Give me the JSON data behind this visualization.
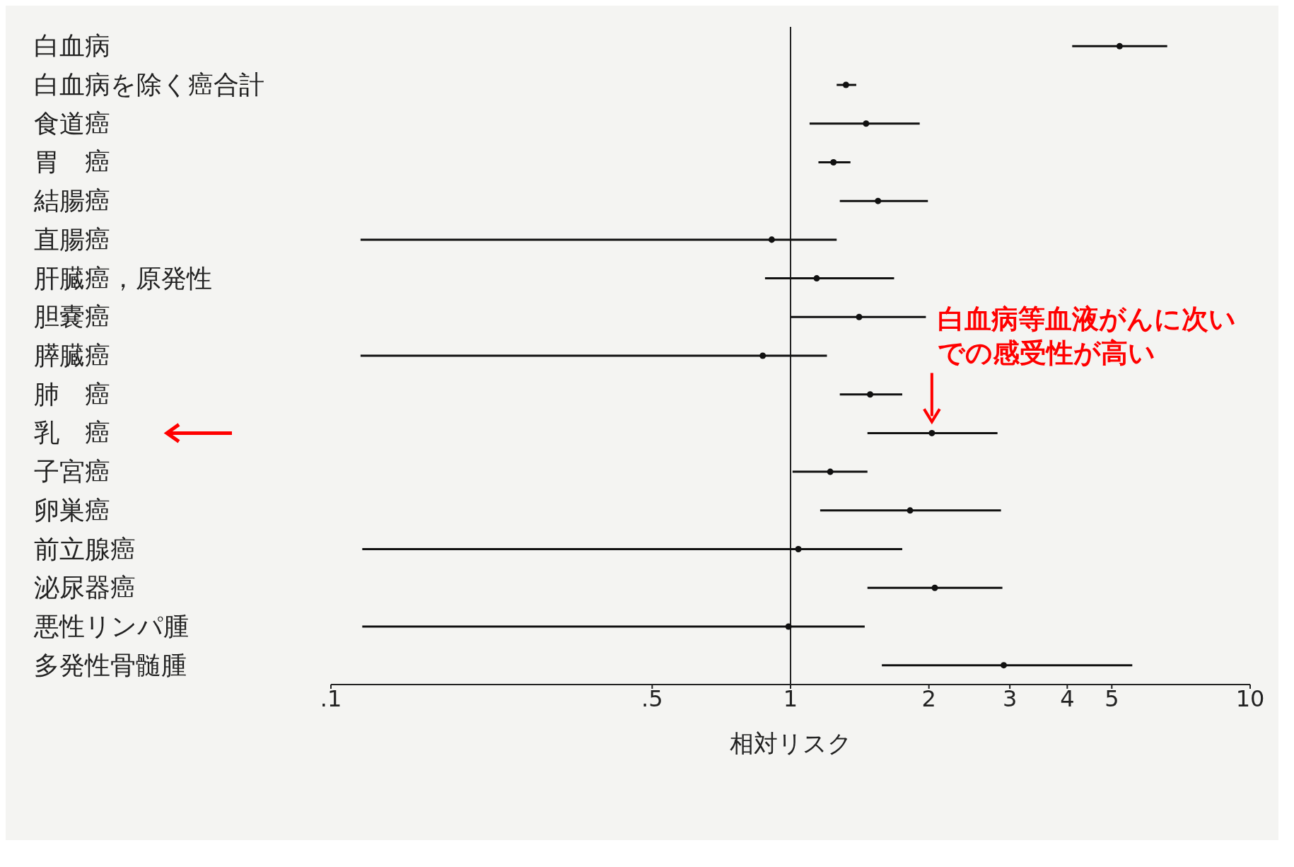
{
  "chart_data": {
    "type": "scatter",
    "xlabel": "相対リスク",
    "categories": [
      "白血病",
      "白血病を除く癌合計",
      "食道癌",
      "胃　癌",
      "結腸癌",
      "直腸癌",
      "肝臓癌，原発性",
      "胆嚢癌",
      "膵臓癌",
      "肺　癌",
      "乳　癌",
      "子宮癌",
      "卵巣癌",
      "前立腺癌",
      "泌尿器癌",
      "悪性リンパ腫",
      "多発性骨髄腫"
    ],
    "series": [
      {
        "color": "#111111",
        "values": [
          5.2,
          1.32,
          1.46,
          1.24,
          1.55,
          0.91,
          1.14,
          1.41,
          0.87,
          1.49,
          2.03,
          1.22,
          1.82,
          1.04,
          2.06,
          0.99,
          2.91
        ],
        "errors": [
          [
            4.1,
            6.6
          ],
          [
            1.26,
            1.39
          ],
          [
            1.1,
            1.91
          ],
          [
            1.15,
            1.35
          ],
          [
            1.28,
            1.99
          ],
          [
            0.116,
            1.26
          ],
          [
            0.88,
            1.68
          ],
          [
            1.0,
            1.97
          ],
          [
            0.116,
            1.2
          ],
          [
            1.28,
            1.75
          ],
          [
            1.47,
            2.82
          ],
          [
            1.01,
            1.47
          ],
          [
            1.16,
            2.87
          ],
          [
            0.117,
            1.75
          ],
          [
            1.47,
            2.89
          ],
          [
            0.117,
            1.45
          ],
          [
            1.58,
            5.54
          ]
        ]
      }
    ],
    "orientation": "horizontal",
    "log": "x",
    "xlim": [
      0.1,
      10
    ],
    "xticks": [
      {
        "value": 0.1,
        "label": ".1"
      },
      {
        "value": 0.5,
        "label": ".5"
      },
      1,
      2,
      3,
      4,
      5,
      10
    ],
    "ref_lines": [
      {
        "axis": "x",
        "value": 1,
        "color": "#222222"
      }
    ],
    "annotations": [
      {
        "text": "白血病等血液がんに次いでの感受性が高い",
        "x": 2.03,
        "y": "乳　癌"
      }
    ],
    "marker": "circle",
    "grid": false,
    "legend": false
  }
}
